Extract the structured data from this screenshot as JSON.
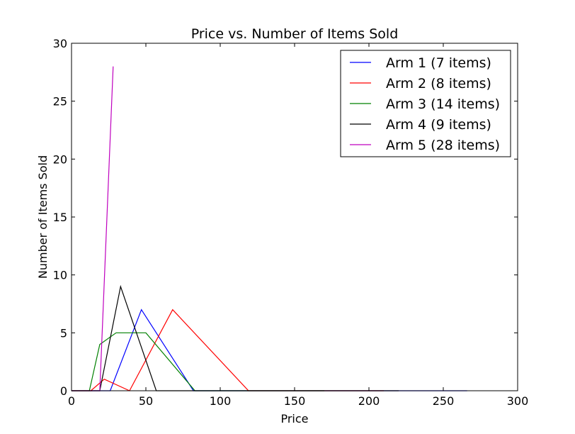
{
  "chart_data": {
    "type": "line",
    "title": "Price vs. Number of Items Sold",
    "xlabel": "Price",
    "ylabel": "Number of Items Sold",
    "xlim": [
      0,
      300
    ],
    "ylim": [
      0,
      30
    ],
    "xticks": [
      0,
      50,
      100,
      150,
      200,
      250,
      300
    ],
    "yticks": [
      0,
      5,
      10,
      15,
      20,
      25,
      30
    ],
    "grid": false,
    "legend_position": "top-right",
    "series": [
      {
        "name": "Arm 1 (7 items)",
        "color": "#0000ff",
        "x": [
          0,
          26,
          47,
          82,
          266
        ],
        "y": [
          0,
          0,
          7,
          0,
          0
        ]
      },
      {
        "name": "Arm 2 (8 items)",
        "color": "#ff0000",
        "x": [
          0,
          13,
          22,
          39,
          68,
          119,
          210
        ],
        "y": [
          0,
          0,
          1,
          0,
          7,
          0,
          0
        ]
      },
      {
        "name": "Arm 3 (14 items)",
        "color": "#008000",
        "x": [
          0,
          12,
          19,
          30,
          50,
          83,
          170
        ],
        "y": [
          0,
          0,
          4,
          5,
          5,
          0,
          0
        ]
      },
      {
        "name": "Arm 4 (9 items)",
        "color": "#000000",
        "x": [
          0,
          19,
          33,
          57,
          220
        ],
        "y": [
          0,
          0,
          9,
          0,
          0
        ]
      },
      {
        "name": "Arm 5 (28 items)",
        "color": "#bf00bf",
        "x": [
          0,
          19,
          28
        ],
        "y": [
          0,
          0,
          28
        ]
      }
    ]
  }
}
